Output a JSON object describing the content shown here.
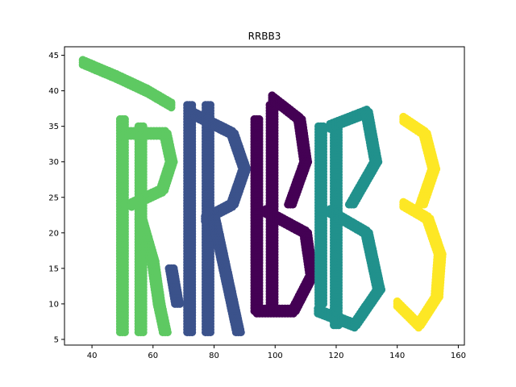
{
  "chart_data": {
    "type": "scatter",
    "title": "RRBB3",
    "xlabel": "",
    "ylabel": "",
    "xlim": [
      31,
      162
    ],
    "ylim": [
      4.2,
      46.2
    ],
    "xticks": [
      40,
      60,
      80,
      100,
      120,
      140,
      160
    ],
    "yticks": [
      5,
      10,
      15,
      20,
      25,
      30,
      35,
      40,
      45
    ],
    "grid": false,
    "legend": "none",
    "marker_size_note": "large circular markers forming letter shapes",
    "series": [
      {
        "letter": "R",
        "color": "#5ec962",
        "stroke_paths": [
          [
            [
              37,
              44
            ],
            [
              48,
              42
            ],
            [
              58,
              40
            ],
            [
              66,
              38
            ]
          ],
          [
            [
              50,
              36
            ],
            [
              50,
              6
            ]
          ],
          [
            [
              56,
              35
            ],
            [
              56,
              6
            ]
          ],
          [
            [
              50,
              34
            ],
            [
              64,
              34
            ],
            [
              66,
              30
            ],
            [
              63,
              26
            ],
            [
              53,
              24
            ]
          ],
          [
            [
              56,
              22
            ],
            [
              60,
              16
            ],
            [
              62,
              10
            ],
            [
              64,
              6
            ]
          ]
        ]
      },
      {
        "letter": "R",
        "color": "#3b528b",
        "stroke_paths": [
          [
            [
              72,
              38
            ],
            [
              72,
              6
            ]
          ],
          [
            [
              78,
              38
            ],
            [
              78,
              6
            ]
          ],
          [
            [
              72,
              37
            ],
            [
              86,
              34
            ],
            [
              90,
              29
            ],
            [
              86,
              24
            ],
            [
              77,
              22
            ]
          ],
          [
            [
              80,
              22
            ],
            [
              84,
              14
            ],
            [
              88,
              6
            ]
          ],
          [
            [
              66,
              15
            ],
            [
              68,
              10
            ]
          ]
        ]
      },
      {
        "letter": "B",
        "color": "#440154",
        "stroke_paths": [
          [
            [
              94,
              36
            ],
            [
              94,
              9
            ]
          ],
          [
            [
              99,
              38
            ],
            [
              99,
              9
            ]
          ],
          [
            [
              99,
              39
            ],
            [
              108,
              36
            ],
            [
              110,
              30
            ],
            [
              105,
              24
            ]
          ],
          [
            [
              97,
              23
            ],
            [
              110,
              20
            ],
            [
              112,
              14
            ],
            [
              106,
              9
            ],
            [
              94,
              9
            ]
          ]
        ]
      },
      {
        "letter": "B",
        "color": "#21918c",
        "stroke_paths": [
          [
            [
              115,
              35
            ],
            [
              115,
              10
            ]
          ],
          [
            [
              120,
              35
            ],
            [
              120,
              7
            ]
          ],
          [
            [
              118,
              35
            ],
            [
              130,
              37
            ],
            [
              133,
              30
            ],
            [
              125,
              24
            ]
          ],
          [
            [
              118,
              23
            ],
            [
              130,
              20
            ],
            [
              134,
              12
            ],
            [
              126,
              7
            ],
            [
              114,
              9
            ]
          ]
        ]
      },
      {
        "letter": "3",
        "color": "#fde725",
        "stroke_paths": [
          [
            [
              142,
              36
            ],
            [
              149,
              34
            ],
            [
              152,
              29
            ],
            [
              148,
              24
            ]
          ],
          [
            [
              142,
              24
            ],
            [
              150,
              22
            ],
            [
              154,
              17
            ],
            [
              153,
              11
            ],
            [
              147,
              7
            ],
            [
              140,
              10
            ]
          ]
        ]
      }
    ]
  }
}
